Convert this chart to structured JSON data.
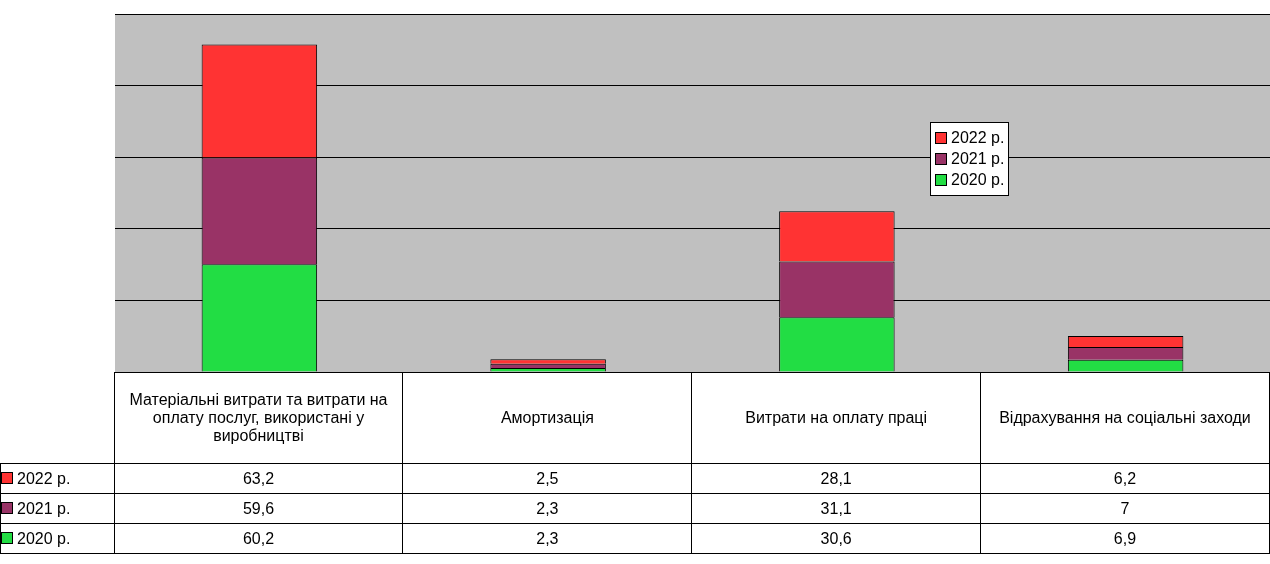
{
  "chart_data": {
    "type": "bar",
    "stacked": true,
    "grid": "y",
    "legend": "right",
    "tick_labels": false,
    "categories": [
      "Матеріальні витрати та витрати на оплату послуг, використані у виробництві",
      "Амортизація",
      "Витрати на оплату праці",
      "Відрахування на соціальні заходи"
    ],
    "series": [
      {
        "name": "2020 р.",
        "color": "#22dd44",
        "values": [
          60.2,
          2.3,
          30.6,
          6.9
        ],
        "value_labels": [
          "60,2",
          "2,3",
          "30,6",
          "6,9"
        ]
      },
      {
        "name": "2021 р.",
        "color": "#993366",
        "values": [
          59.6,
          2.3,
          31.1,
          7
        ],
        "value_labels": [
          "59,6",
          "2,3",
          "31,1",
          "7"
        ]
      },
      {
        "name": "2022 р.",
        "color": "#ff3333",
        "values": [
          63.2,
          2.5,
          28.1,
          6.2
        ],
        "value_labels": [
          "63,2",
          "2,5",
          "28,1",
          "6,2"
        ]
      }
    ]
  }
}
